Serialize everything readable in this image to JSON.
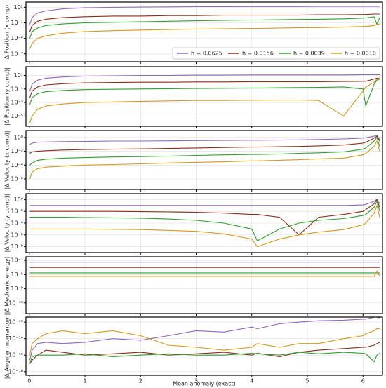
{
  "chart_data": [
    {
      "type": "line",
      "ylabel": "|Δ Position (x comp)|",
      "log_y": true,
      "grid": true,
      "legend": "lower right",
      "xlim": [
        -0.06,
        6.35
      ],
      "ylim": [
        3e-09,
        1000
      ],
      "yticks": [
        {
          "value": 100,
          "label": "10²"
        },
        {
          "value": 0.1,
          "label": "10⁻¹"
        },
        {
          "value": 0.0001,
          "label": "10⁻⁴"
        },
        {
          "value": 1e-07,
          "label": "10⁻⁷"
        }
      ],
      "x": [
        0.01,
        0.05,
        0.15,
        0.3,
        0.6,
        1,
        1.5,
        2,
        2.5,
        3,
        3.5,
        4,
        4.1,
        4.5,
        4.85,
        5.2,
        5.65,
        6,
        6.05,
        6.2,
        6.25,
        6.3
      ],
      "series": [
        {
          "name": "h = 0.0625",
          "color": "#9467bd",
          "values": [
            0.05,
            1,
            8,
            20,
            50,
            80,
            100,
            110,
            120,
            130,
            130,
            140,
            140,
            140,
            140,
            150,
            150,
            150,
            150,
            150,
            150,
            150
          ]
        },
        {
          "name": "h = 0.0156",
          "color": "#8c2d19",
          "values": [
            0.002,
            0.03,
            0.2,
            0.5,
            1,
            1.5,
            2,
            2,
            2.5,
            2.5,
            3,
            3,
            3,
            3,
            3,
            3.5,
            3.5,
            4,
            4,
            5,
            5,
            5
          ]
        },
        {
          "name": "h = 0.0039",
          "color": "#2ca02c",
          "values": [
            0.0001,
            0.002,
            0.01,
            0.03,
            0.06,
            0.1,
            0.13,
            0.16,
            0.2,
            0.25,
            0.3,
            0.35,
            0.35,
            0.4,
            0.45,
            0.5,
            0.6,
            0.8,
            0.9,
            1.5,
            0.05,
            1
          ]
        },
        {
          "name": "h = 0.0010",
          "color": "#d49a1a",
          "values": [
            1e-06,
            1e-05,
            0.0001,
            0.0003,
            0.001,
            0.002,
            0.003,
            0.004,
            0.005,
            0.006,
            0.007,
            0.008,
            0.008,
            0.01,
            0.011,
            0.012,
            0.015,
            0.02,
            0.02,
            0.03,
            0.05,
            0.06
          ]
        }
      ]
    },
    {
      "type": "line",
      "ylabel": "|Δ Position (y comp)|",
      "log_y": true,
      "grid": true,
      "xlim": [
        -0.06,
        6.35
      ],
      "ylim": [
        3e-07,
        200
      ],
      "yticks": [
        {
          "value": 10,
          "label": "10¹"
        },
        {
          "value": 0.1,
          "label": "10⁻¹"
        },
        {
          "value": 0.001,
          "label": "10⁻³"
        },
        {
          "value": 1e-05,
          "label": "10⁻⁵"
        }
      ],
      "x": [
        0.01,
        0.05,
        0.15,
        0.3,
        0.6,
        1,
        1.5,
        2,
        2.5,
        3,
        3.5,
        4,
        4.1,
        4.5,
        4.85,
        5.2,
        5.65,
        6,
        6.05,
        6.2,
        6.25,
        6.3
      ],
      "series": [
        {
          "name": "h = 0.0625",
          "color": "#9467bd",
          "values": [
            0.05,
            0.5,
            2,
            4,
            6,
            8,
            9,
            10,
            10,
            11,
            11,
            12,
            12,
            12,
            12,
            12,
            12,
            13,
            13,
            13,
            13,
            13
          ]
        },
        {
          "name": "h = 0.0156",
          "color": "#8c2d19",
          "values": [
            0.005,
            0.05,
            0.2,
            0.4,
            0.6,
            0.8,
            0.9,
            1,
            1,
            1.1,
            1.1,
            1.2,
            1.2,
            1.2,
            1.2,
            1.2,
            1.3,
            1.4,
            1.4,
            3,
            4,
            4
          ]
        },
        {
          "name": "h = 0.0039",
          "color": "#2ca02c",
          "values": [
            0.0005,
            0.005,
            0.02,
            0.04,
            0.06,
            0.08,
            0.09,
            0.1,
            0.11,
            0.12,
            0.13,
            0.14,
            0.14,
            0.15,
            0.16,
            0.17,
            0.2,
            0.1,
            0.0003,
            0.5,
            2,
            3
          ]
        },
        {
          "name": "h = 0.0010",
          "color": "#d49a1a",
          "values": [
            1e-06,
            1e-05,
            0.0001,
            0.0003,
            0.0006,
            0.001,
            0.0012,
            0.0015,
            0.0017,
            0.002,
            0.002,
            0.0022,
            0.0022,
            0.0023,
            0.0023,
            0.002,
            1e-05,
            0.05,
            0.2,
            1,
            3,
            4
          ]
        }
      ]
    },
    {
      "type": "line",
      "ylabel": "|Δ Velocity (x comp)|",
      "log_y": true,
      "grid": true,
      "xlim": [
        -0.06,
        6.35
      ],
      "ylim": [
        3e-08,
        10
      ],
      "yticks": [
        {
          "value": 1,
          "label": "10⁰"
        },
        {
          "value": 0.01,
          "label": "10⁻²"
        },
        {
          "value": 0.0001,
          "label": "10⁻⁴"
        },
        {
          "value": 1e-06,
          "label": "10⁻⁶"
        }
      ],
      "x": [
        0.01,
        0.05,
        0.15,
        0.3,
        0.6,
        1,
        1.5,
        2,
        2.5,
        3,
        3.5,
        4,
        4.1,
        4.5,
        4.85,
        5.2,
        5.65,
        6,
        6.05,
        6.2,
        6.25,
        6.3
      ],
      "series": [
        {
          "name": "h = 0.0625",
          "color": "#9467bd",
          "values": [
            0.1,
            0.15,
            0.2,
            0.22,
            0.25,
            0.27,
            0.3,
            0.3,
            0.32,
            0.35,
            0.37,
            0.4,
            0.4,
            0.42,
            0.45,
            0.5,
            0.6,
            0.8,
            0.9,
            1.5,
            2,
            0.5
          ]
        },
        {
          "name": "h = 0.0156",
          "color": "#8c2d19",
          "values": [
            0.005,
            0.008,
            0.01,
            0.012,
            0.015,
            0.018,
            0.02,
            0.022,
            0.025,
            0.03,
            0.035,
            0.04,
            0.04,
            0.045,
            0.05,
            0.06,
            0.08,
            0.15,
            0.2,
            0.8,
            1.5,
            0.3
          ]
        },
        {
          "name": "h = 0.0039",
          "color": "#2ca02c",
          "values": [
            0.0001,
            0.0002,
            0.0005,
            0.0007,
            0.001,
            0.0012,
            0.0015,
            0.0017,
            0.002,
            0.0025,
            0.003,
            0.0035,
            0.0035,
            0.004,
            0.005,
            0.006,
            0.008,
            0.02,
            0.03,
            0.3,
            1,
            0.05
          ]
        },
        {
          "name": "h = 0.0010",
          "color": "#d49a1a",
          "values": [
            1e-06,
            1e-05,
            3e-05,
            5e-05,
            7e-05,
            0.0001,
            0.00012,
            0.00015,
            0.0002,
            0.00025,
            0.0003,
            0.0004,
            0.0004,
            0.0005,
            0.0006,
            0.0008,
            0.001,
            0.003,
            0.005,
            0.05,
            0.3,
            0.01
          ]
        }
      ]
    },
    {
      "type": "line",
      "ylabel": "|Δ Velocity (y comp)|",
      "log_y": true,
      "grid": true,
      "xlim": [
        -0.06,
        6.35
      ],
      "ylim": [
        1e-09,
        10
      ],
      "yticks": [
        {
          "value": 1,
          "label": "10⁰"
        },
        {
          "value": 0.01,
          "label": "10⁻²"
        },
        {
          "value": 0.0001,
          "label": "10⁻⁴"
        },
        {
          "value": 1e-06,
          "label": "10⁻⁶"
        },
        {
          "value": 1e-08,
          "label": "10⁻⁸"
        }
      ],
      "x": [
        0.01,
        0.05,
        0.15,
        0.3,
        0.6,
        1,
        1.5,
        2,
        2.5,
        3,
        3.5,
        4,
        4.1,
        4.5,
        4.85,
        5.2,
        5.65,
        6,
        6.05,
        6.2,
        6.25,
        6.3
      ],
      "series": [
        {
          "name": "h = 0.0625",
          "color": "#9467bd",
          "values": [
            0.1,
            0.1,
            0.1,
            0.1,
            0.1,
            0.1,
            0.1,
            0.1,
            0.1,
            0.1,
            0.1,
            0.1,
            0.1,
            0.1,
            0.1,
            0.1,
            0.1,
            0.12,
            0.15,
            0.5,
            1,
            0.2
          ]
        },
        {
          "name": "h = 0.0156",
          "color": "#8c2d19",
          "values": [
            0.01,
            0.01,
            0.01,
            0.01,
            0.01,
            0.01,
            0.01,
            0.009,
            0.008,
            0.007,
            0.005,
            0.003,
            0.003,
            0.001,
            1e-06,
            0.001,
            0.003,
            0.01,
            0.02,
            0.2,
            1,
            0.05
          ]
        },
        {
          "name": "h = 0.0039",
          "color": "#2ca02c",
          "values": [
            0.001,
            0.001,
            0.001,
            0.001,
            0.001,
            0.0009,
            0.0008,
            0.0007,
            0.0005,
            0.0003,
            0.0001,
            1e-05,
            1e-07,
            1e-05,
            0.0001,
            0.0003,
            0.0006,
            0.002,
            0.003,
            0.05,
            0.5,
            0.01
          ]
        },
        {
          "name": "h = 0.0010",
          "color": "#d49a1a",
          "values": [
            1e-05,
            1e-05,
            1e-05,
            1e-05,
            1e-05,
            1e-05,
            9e-06,
            8e-06,
            6e-06,
            4e-06,
            1.5e-06,
            2e-07,
            1e-08,
            2e-07,
            1e-06,
            3e-06,
            8e-06,
            5e-05,
            0.0001,
            0.005,
            0.1,
            0.001
          ]
        }
      ]
    },
    {
      "type": "line",
      "ylabel": "|Δ Mechanic energy|",
      "log_y": true,
      "grid": true,
      "xlim": [
        -0.06,
        6.35
      ],
      "ylim": [
        1e-16,
        1
      ],
      "yticks": [
        {
          "value": 0.1,
          "label": "10⁻¹"
        },
        {
          "value": 1e-05,
          "label": "10⁻⁵"
        },
        {
          "value": 1e-09,
          "label": "10⁻⁹"
        },
        {
          "value": 1e-13,
          "label": "10⁻¹³"
        }
      ],
      "x": [
        0.01,
        0.05,
        0.15,
        0.3,
        0.6,
        1,
        1.5,
        2,
        2.5,
        3,
        3.5,
        4,
        4.1,
        4.5,
        4.85,
        5.2,
        5.65,
        6,
        6.05,
        6.2,
        6.25,
        6.3
      ],
      "series": [
        {
          "name": "h = 0.0625",
          "color": "#9467bd",
          "values": [
            0.03,
            0.03,
            0.03,
            0.03,
            0.03,
            0.03,
            0.03,
            0.03,
            0.03,
            0.03,
            0.03,
            0.03,
            0.03,
            0.03,
            0.03,
            0.03,
            0.03,
            0.03,
            0.03,
            0.03,
            0.03,
            0.03
          ]
        },
        {
          "name": "h = 0.0156",
          "color": "#8c2d19",
          "values": [
            0.001,
            0.001,
            0.001,
            0.001,
            0.001,
            0.001,
            0.001,
            0.001,
            0.001,
            0.001,
            0.001,
            0.001,
            0.001,
            0.001,
            0.001,
            0.001,
            0.001,
            0.001,
            0.001,
            0.001,
            0.001,
            0.001
          ]
        },
        {
          "name": "h = 0.0039",
          "color": "#2ca02c",
          "values": [
            3e-05,
            3e-05,
            3e-05,
            3e-05,
            3e-05,
            3e-05,
            3e-05,
            3e-05,
            3e-05,
            3e-05,
            3e-05,
            3e-05,
            3e-05,
            3e-05,
            3e-05,
            3e-05,
            3e-05,
            3e-05,
            3e-05,
            3e-05,
            3e-05,
            3e-05
          ]
        },
        {
          "name": "h = 0.0010",
          "color": "#d49a1a",
          "values": [
            3e-06,
            3e-06,
            3e-06,
            3e-06,
            3e-06,
            3e-06,
            3e-06,
            3e-06,
            3e-06,
            3e-06,
            3e-06,
            3e-06,
            3e-06,
            3e-06,
            3e-06,
            3e-06,
            3e-06,
            3e-06,
            3e-06,
            3e-06,
            0.0001,
            3e-06
          ]
        }
      ]
    },
    {
      "type": "line",
      "ylabel": "|Δ Angular momentum|",
      "xlabel": "Mean anomaly (exact)",
      "log_y": true,
      "grid": true,
      "xlim": [
        -0.06,
        6.35
      ],
      "ylim": [
        6e-17,
        2e-13
      ],
      "xticks": [
        0,
        1,
        2,
        3,
        4,
        5,
        6
      ],
      "yticks": [
        {
          "value": 1e-13,
          "label": "10⁻¹³"
        },
        {
          "value": 1e-14,
          "label": "10⁻¹⁴"
        },
        {
          "value": 1e-15,
          "label": "10⁻¹⁵"
        },
        {
          "value": 1e-16,
          "label": "10⁻¹⁶"
        }
      ],
      "x": [
        0.01,
        0.05,
        0.15,
        0.3,
        0.6,
        1,
        1.5,
        2,
        2.5,
        3,
        3.5,
        4,
        4.1,
        4.5,
        4.85,
        5.2,
        5.65,
        6,
        6.05,
        6.2,
        6.25,
        6.3
      ],
      "series": [
        {
          "name": "h = 0.0625",
          "color": "#9467bd",
          "values": [
            5e-16,
            2e-15,
            5e-15,
            6e-15,
            5e-15,
            6e-15,
            1e-14,
            8e-15,
            1.5e-14,
            3e-14,
            2.5e-14,
            5e-14,
            4e-14,
            8e-14,
            1e-13,
            1.2e-13,
            1.3e-13,
            1.5e-13,
            1.5e-13,
            2e-13,
            2e-13,
            1.8e-13
          ]
        },
        {
          "name": "h = 0.0156",
          "color": "#8c2d19",
          "values": [
            3e-16,
            5e-16,
            1e-15,
            2e-15,
            1.5e-15,
            1e-15,
            1.2e-15,
            1.5e-15,
            1e-15,
            1.2e-15,
            1.5e-15,
            1e-15,
            1.3e-15,
            8e-16,
            1.5e-15,
            2e-15,
            2.5e-15,
            3e-15,
            3e-15,
            4e-15,
            5e-15,
            6e-15
          ]
        },
        {
          "name": "h = 0.0039",
          "color": "#2ca02c",
          "values": [
            3e-16,
            8e-16,
            1e-15,
            1e-15,
            1e-15,
            1.2e-15,
            8e-16,
            1e-15,
            1.2e-15,
            1e-15,
            1e-15,
            1.3e-15,
            1.2e-15,
            1e-15,
            1.5e-15,
            1.2e-15,
            1.5e-15,
            1.3e-15,
            1.2e-15,
            4e-16,
            1e-15,
            1.3e-15
          ]
        },
        {
          "name": "h = 0.0010",
          "color": "#d49a1a",
          "values": [
            1e-15,
            5e-15,
            1e-14,
            2e-14,
            3e-14,
            2e-14,
            3e-14,
            1.5e-14,
            4e-15,
            3e-15,
            2e-15,
            3e-15,
            5e-15,
            3e-15,
            5e-15,
            5e-15,
            1e-14,
            1.5e-14,
            2e-14,
            3e-14,
            4e-14,
            4e-14
          ]
        }
      ]
    }
  ]
}
